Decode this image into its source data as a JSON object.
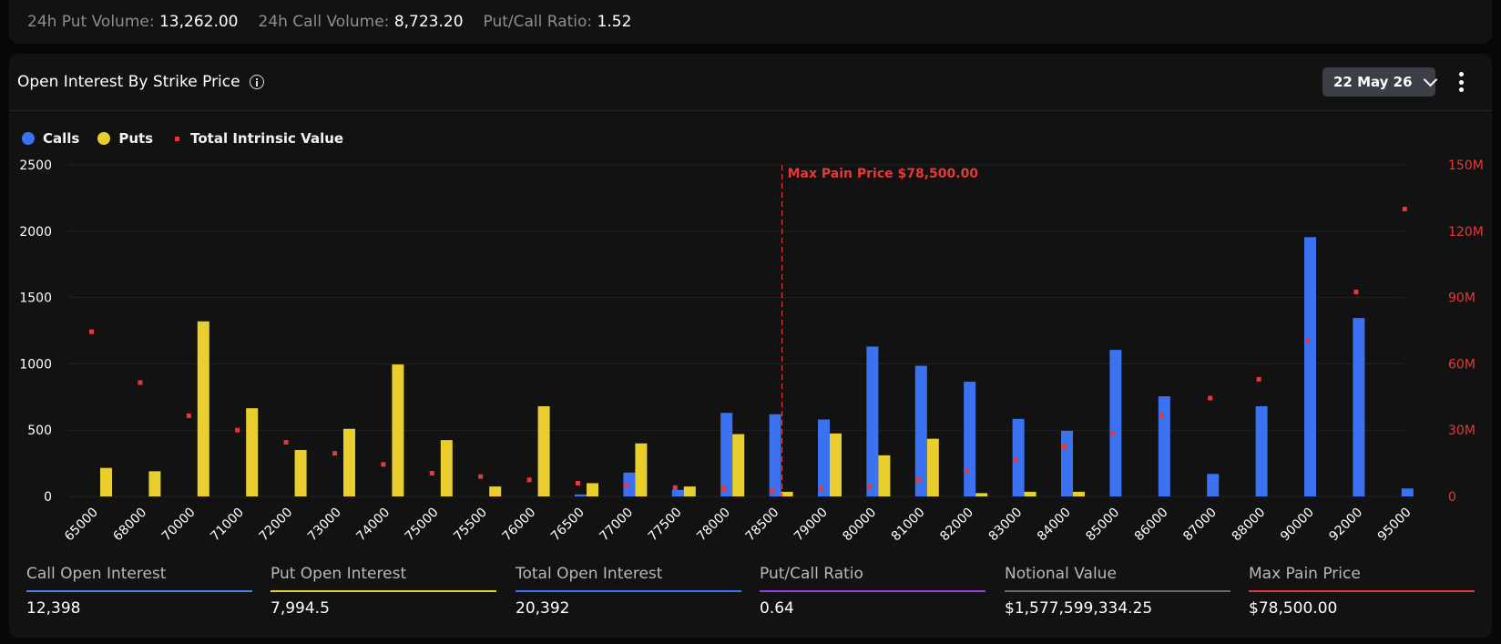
{
  "stats": [
    {
      "label": "24h Put Volume:",
      "value": "13,262.00"
    },
    {
      "label": "24h Call Volume:",
      "value": "8,723.20"
    },
    {
      "label": "Put/Call Ratio:",
      "value": "1.52"
    }
  ],
  "panel": {
    "title": "Open Interest By Strike Price",
    "date": "22 May 26"
  },
  "legend": [
    {
      "label": "Calls",
      "color": "#3a72f2"
    },
    {
      "label": "Puts",
      "color": "#e8cf2e"
    },
    {
      "label": "Total Intrinsic Value",
      "color": "#e23a3a"
    }
  ],
  "chart_data": {
    "type": "bar",
    "categories": [
      "65000",
      "68000",
      "70000",
      "71000",
      "72000",
      "73000",
      "74000",
      "75000",
      "75500",
      "76000",
      "76500",
      "77000",
      "77500",
      "78000",
      "78500",
      "79000",
      "80000",
      "81000",
      "82000",
      "83000",
      "84000",
      "85000",
      "86000",
      "87000",
      "88000",
      "90000",
      "92000",
      "95000"
    ],
    "series": [
      {
        "name": "Calls",
        "color": "#3a72f2",
        "values": [
          0,
          0,
          0,
          0,
          0,
          0,
          0,
          0,
          0,
          0,
          15,
          180,
          50,
          630,
          620,
          580,
          1130,
          985,
          865,
          585,
          495,
          1105,
          755,
          170,
          680,
          1955,
          1345,
          60
        ]
      },
      {
        "name": "Puts",
        "color": "#e8cf2e",
        "values": [
          215,
          190,
          1320,
          665,
          350,
          510,
          995,
          425,
          75,
          680,
          100,
          400,
          75,
          470,
          35,
          475,
          310,
          435,
          25,
          35,
          35,
          0,
          0,
          0,
          0,
          0,
          0,
          0
        ]
      },
      {
        "name": "Total Intrinsic Value",
        "color": "#e23a3a",
        "type": "scatter",
        "axis": "right",
        "values": [
          74.5,
          51.5,
          36.5,
          30,
          24.5,
          19.5,
          14.5,
          10.5,
          9,
          7.5,
          6,
          5,
          4,
          3.5,
          2.5,
          3.5,
          4.5,
          7.5,
          11.5,
          16.5,
          22.5,
          28.5,
          36.5,
          44.5,
          53,
          70.5,
          92.5,
          130
        ]
      }
    ],
    "ylim": [
      0,
      2500
    ],
    "y_ticks": [
      "0",
      "500",
      "1000",
      "1500",
      "2000",
      "2500"
    ],
    "y2lim": [
      0,
      150
    ],
    "y2_ticks": [
      "0",
      "30M",
      "60M",
      "90M",
      "120M",
      "150M"
    ],
    "annotation": {
      "label": "Max Pain Price $78,500.00",
      "category": "78500",
      "color": "#e23a3a"
    },
    "grid": true,
    "legend_position": "top-left"
  },
  "summary": [
    {
      "label": "Call Open Interest",
      "value": "12,398",
      "color": "#4d7ef0"
    },
    {
      "label": "Put Open Interest",
      "value": "7,994.5",
      "color": "#e8cf2e"
    },
    {
      "label": "Total Open Interest",
      "value": "20,392",
      "color": "#3a72f2"
    },
    {
      "label": "Put/Call Ratio",
      "value": "0.64",
      "color": "#9b40e0"
    },
    {
      "label": "Notional Value",
      "value": "$1,577,599,334.25",
      "color": "#6a6a6a"
    },
    {
      "label": "Max Pain Price",
      "value": "$78,500.00",
      "color": "#e23a3a"
    }
  ]
}
